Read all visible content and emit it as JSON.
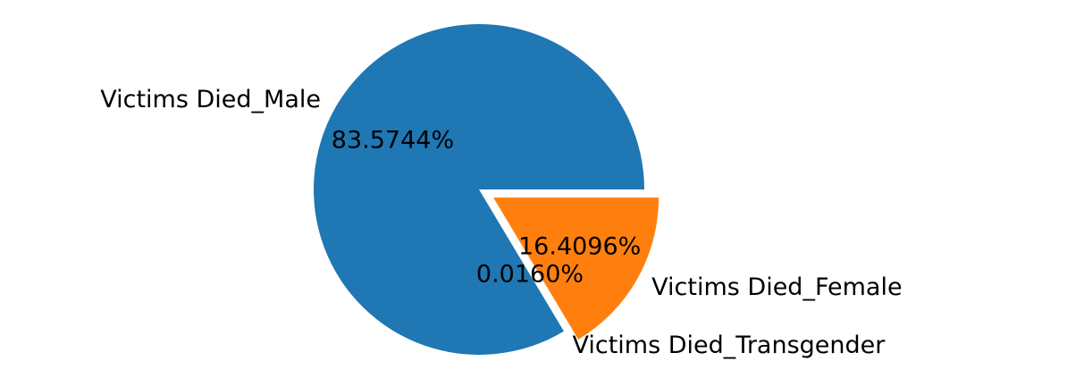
{
  "chart_data": {
    "type": "pie",
    "title": "",
    "start_angle_deg": 0,
    "direction": "counterclockwise",
    "slices": [
      {
        "label": "Victims Died_Male",
        "value": 83.5744,
        "pct_label": "83.5744%",
        "color": "#1f77b4",
        "exploded": false
      },
      {
        "label": "Victims Died_Transgender",
        "value": 0.016,
        "pct_label": "0.0160%",
        "color": "#2ca02c",
        "exploded": false
      },
      {
        "label": "Victims Died_Female",
        "value": 16.4096,
        "pct_label": "16.4096%",
        "color": "#ff7f0e",
        "exploded": true
      }
    ]
  }
}
